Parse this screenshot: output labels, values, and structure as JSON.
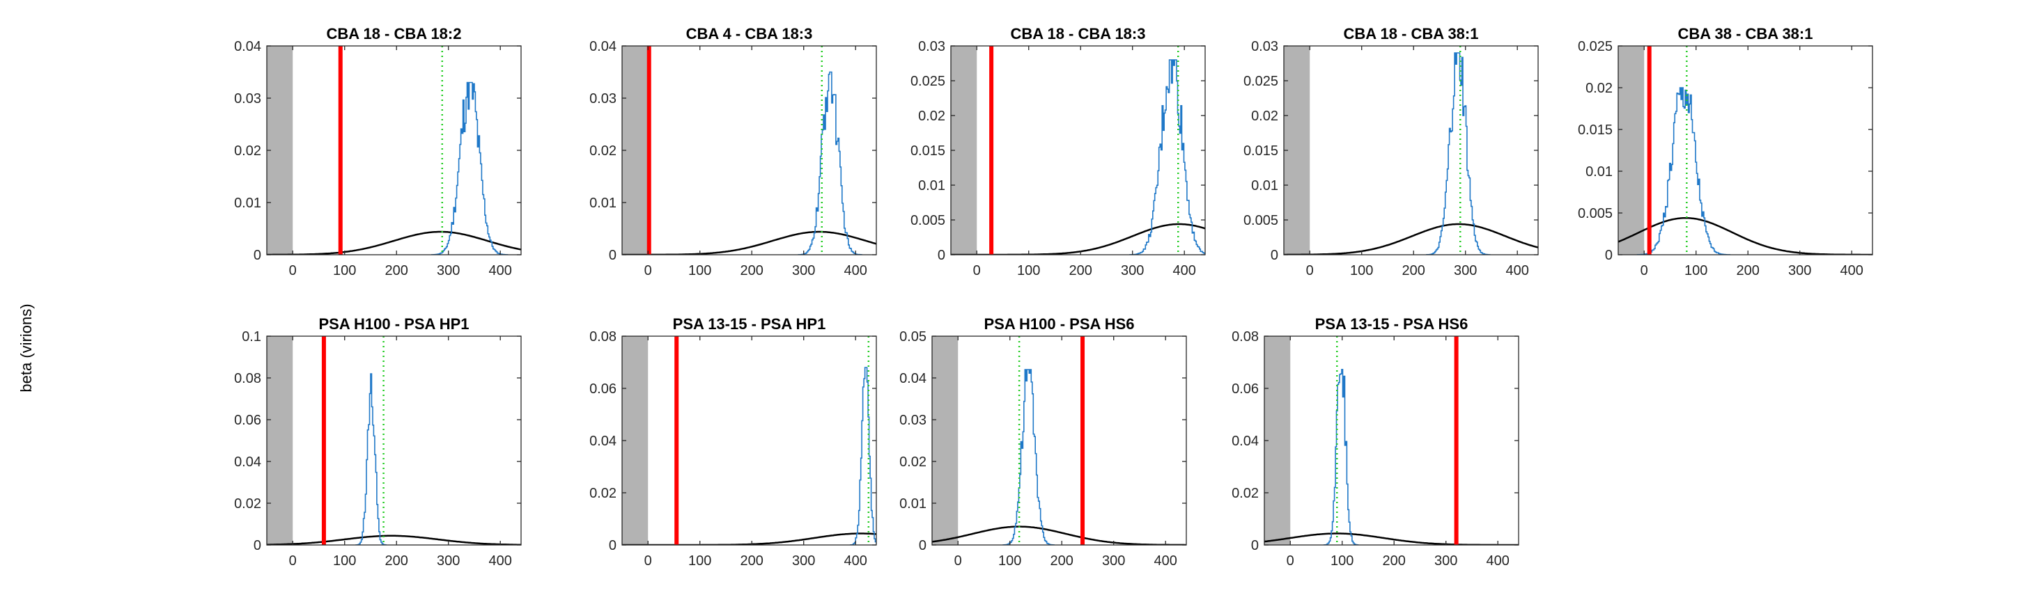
{
  "figure": {
    "ylabel": "beta (virions)"
  },
  "chart_data": [
    {
      "type": "line",
      "title": "CBA 18 - CBA 18:2",
      "xlim": [
        -50,
        440
      ],
      "ylim": [
        0,
        0.04
      ],
      "xticks": [
        0,
        100,
        200,
        300,
        400
      ],
      "yticks": [
        0,
        0.01,
        0.02,
        0.03,
        0.04
      ],
      "ytick_labels": [
        "0",
        "0.01",
        "0.02",
        "0.03",
        "0.04"
      ],
      "shaded_region": [
        -50,
        0
      ],
      "red_line_x": 92,
      "green_dotted_x": 288,
      "black_curve": {
        "mean": 285,
        "sd": 90,
        "peak": 0.0044
      },
      "blue_hist": {
        "center": 340,
        "sd": 18,
        "peak": 0.033
      }
    },
    {
      "type": "line",
      "title": "CBA 4 - CBA 18:3",
      "xlim": [
        -50,
        440
      ],
      "ylim": [
        0,
        0.04
      ],
      "xticks": [
        0,
        100,
        200,
        300,
        400
      ],
      "yticks": [
        0,
        0.01,
        0.02,
        0.03,
        0.04
      ],
      "ytick_labels": [
        "0",
        "0.01",
        "0.02",
        "0.03",
        "0.04"
      ],
      "shaded_region": [
        -50,
        0
      ],
      "red_line_x": 2,
      "green_dotted_x": 335,
      "black_curve": {
        "mean": 330,
        "sd": 90,
        "peak": 0.0044
      },
      "blue_hist": {
        "center": 350,
        "sd": 15,
        "peak": 0.035
      }
    },
    {
      "type": "line",
      "title": "CBA 18 - CBA 18:3",
      "xlim": [
        -50,
        440
      ],
      "ylim": [
        0,
        0.03
      ],
      "xticks": [
        0,
        100,
        200,
        300,
        400
      ],
      "yticks": [
        0,
        0.005,
        0.01,
        0.015,
        0.02,
        0.025,
        0.03
      ],
      "ytick_labels": [
        "0",
        "0.005",
        "0.01",
        "0.015",
        "0.02",
        "0.025",
        "0.03"
      ],
      "shaded_region": [
        -50,
        0
      ],
      "red_line_x": 28,
      "green_dotted_x": 388,
      "black_curve": {
        "mean": 390,
        "sd": 90,
        "peak": 0.0044
      },
      "blue_hist": {
        "center": 375,
        "sd": 20,
        "peak": 0.028
      }
    },
    {
      "type": "line",
      "title": "CBA 18 - CBA 38:1",
      "xlim": [
        -50,
        440
      ],
      "ylim": [
        0,
        0.03
      ],
      "xticks": [
        0,
        100,
        200,
        300,
        400
      ],
      "yticks": [
        0,
        0.005,
        0.01,
        0.015,
        0.02,
        0.025,
        0.03
      ],
      "ytick_labels": [
        "0",
        "0.005",
        "0.01",
        "0.015",
        "0.02",
        "0.025",
        "0.03"
      ],
      "shaded_region": [
        -50,
        0
      ],
      "red_line_x": null,
      "green_dotted_x": 290,
      "black_curve": {
        "mean": 287,
        "sd": 90,
        "peak": 0.0044
      },
      "blue_hist": {
        "center": 285,
        "sd": 15,
        "peak": 0.029
      }
    },
    {
      "type": "line",
      "title": "CBA 38 - CBA 38:1",
      "xlim": [
        -50,
        440
      ],
      "ylim": [
        0,
        0.025
      ],
      "xticks": [
        0,
        100,
        200,
        300,
        400
      ],
      "yticks": [
        0,
        0.005,
        0.01,
        0.015,
        0.02,
        0.025
      ],
      "ytick_labels": [
        "0",
        "0.005",
        "0.01",
        "0.015",
        "0.02",
        "0.025"
      ],
      "shaded_region": [
        -50,
        0
      ],
      "red_line_x": 10,
      "green_dotted_x": 82,
      "black_curve": {
        "mean": 80,
        "sd": 90,
        "peak": 0.0044
      },
      "blue_hist": {
        "center": 75,
        "sd": 22,
        "peak": 0.02
      }
    },
    {
      "type": "line",
      "title": "PSA H100 - PSA HP1",
      "xlim": [
        -50,
        440
      ],
      "ylim": [
        0,
        0.1
      ],
      "xticks": [
        0,
        100,
        200,
        300,
        400
      ],
      "yticks": [
        0,
        0.02,
        0.04,
        0.06,
        0.08,
        0.1
      ],
      "ytick_labels": [
        "0",
        "0.02",
        "0.04",
        "0.06",
        "0.08",
        "0.1"
      ],
      "shaded_region": [
        -50,
        0
      ],
      "red_line_x": 60,
      "green_dotted_x": 175,
      "black_curve": {
        "mean": 190,
        "sd": 90,
        "peak": 0.0044
      },
      "blue_hist": {
        "center": 150,
        "sd": 7,
        "peak": 0.082
      }
    },
    {
      "type": "line",
      "title": "PSA 13-15 - PSA HP1",
      "xlim": [
        -50,
        440
      ],
      "ylim": [
        0,
        0.08
      ],
      "xticks": [
        0,
        100,
        200,
        300,
        400
      ],
      "yticks": [
        0,
        0.02,
        0.04,
        0.06,
        0.08
      ],
      "ytick_labels": [
        "0",
        "0.02",
        "0.04",
        "0.06",
        "0.08"
      ],
      "shaded_region": [
        -50,
        0
      ],
      "red_line_x": 55,
      "green_dotted_x": 425,
      "black_curve": {
        "mean": 410,
        "sd": 90,
        "peak": 0.0044
      },
      "blue_hist": {
        "center": 418,
        "sd": 7,
        "peak": 0.068
      }
    },
    {
      "type": "line",
      "title": "PSA H100 - PSA HS6",
      "xlim": [
        -50,
        440
      ],
      "ylim": [
        0,
        0.05
      ],
      "xticks": [
        0,
        100,
        200,
        300,
        400
      ],
      "yticks": [
        0,
        0.01,
        0.02,
        0.03,
        0.04,
        0.05
      ],
      "ytick_labels": [
        "0",
        "0.01",
        "0.02",
        "0.03",
        "0.04",
        "0.05"
      ],
      "shaded_region": [
        -50,
        0
      ],
      "red_line_x": 240,
      "green_dotted_x": 118,
      "black_curve": {
        "mean": 118,
        "sd": 90,
        "peak": 0.0044
      },
      "blue_hist": {
        "center": 135,
        "sd": 12,
        "peak": 0.042
      }
    },
    {
      "type": "line",
      "title": "PSA 13-15 - PSA HS6",
      "xlim": [
        -50,
        440
      ],
      "ylim": [
        0,
        0.08
      ],
      "xticks": [
        0,
        100,
        200,
        300,
        400
      ],
      "yticks": [
        0,
        0.02,
        0.04,
        0.06,
        0.08
      ],
      "ytick_labels": [
        "0",
        "0.02",
        "0.04",
        "0.06",
        "0.08"
      ],
      "shaded_region": [
        -50,
        0
      ],
      "red_line_x": 320,
      "green_dotted_x": 90,
      "black_curve": {
        "mean": 90,
        "sd": 90,
        "peak": 0.0044
      },
      "blue_hist": {
        "center": 97,
        "sd": 8,
        "peak": 0.075
      }
    }
  ]
}
